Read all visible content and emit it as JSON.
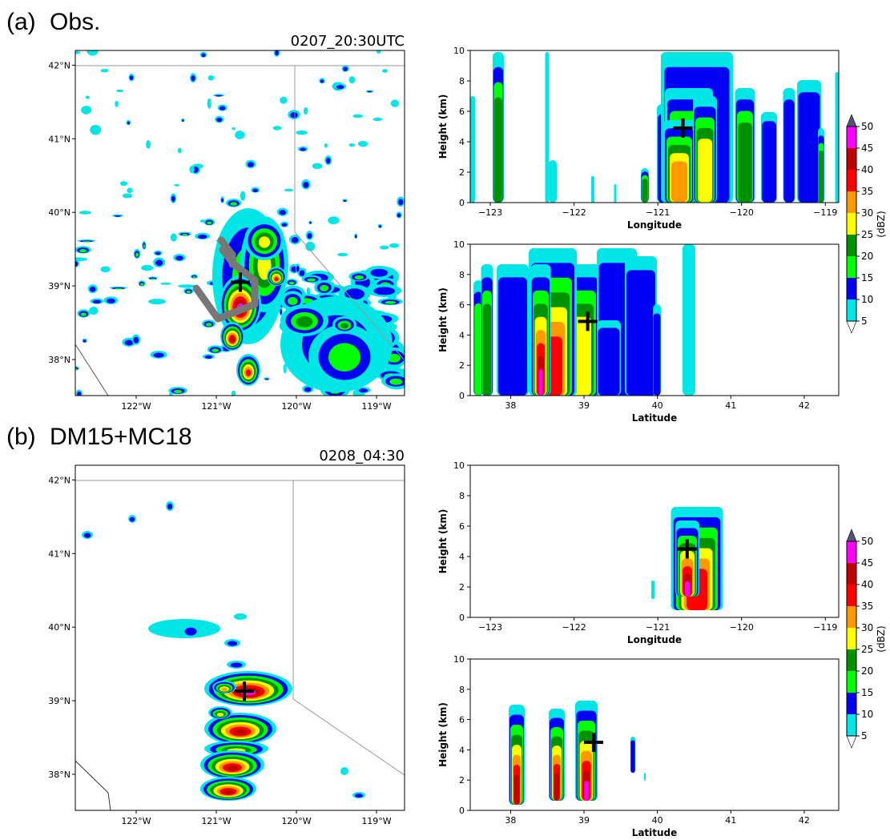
{
  "panels": [
    {
      "label": "(a)",
      "title": "Obs.",
      "time": "0207_20:30UTC",
      "marker": {
        "lon": -120.7,
        "lat": 39.05,
        "height": 4.9
      },
      "map": {
        "xlim": [
          -122.76,
          -118.65
        ],
        "ylim": [
          37.51,
          42.2
        ],
        "xticks": [
          {
            "value": -122,
            "label": "122°W"
          },
          {
            "value": -121,
            "label": "121°W"
          },
          {
            "value": -120,
            "label": "120°W"
          },
          {
            "value": -119,
            "label": "119°W"
          }
        ],
        "yticks": [
          {
            "value": 38,
            "label": "38°N"
          },
          {
            "value": 39,
            "label": "39°N"
          },
          {
            "value": 40,
            "label": "40°N"
          },
          {
            "value": 41,
            "label": "41°N"
          },
          {
            "value": 42,
            "label": "42°N"
          }
        ]
      },
      "lon_section": {
        "xlabel": "Longitude",
        "ylabel": "Height (km)",
        "xlim": [
          -123.24,
          -118.84
        ],
        "ylim": [
          0,
          10
        ],
        "xticks": [
          {
            "value": -123,
            "label": "−123"
          },
          {
            "value": -122,
            "label": "−122"
          },
          {
            "value": -121,
            "label": "−121"
          },
          {
            "value": -120,
            "label": "−120"
          },
          {
            "value": -119,
            "label": "−119"
          }
        ],
        "yticks": [
          0,
          2,
          4,
          6,
          8,
          10
        ]
      },
      "lat_section": {
        "xlabel": "Latitude",
        "ylabel": "Height (km)",
        "xlim": [
          37.45,
          42.47
        ],
        "ylim": [
          0,
          10
        ],
        "xticks": [
          38,
          39,
          40,
          41,
          42
        ],
        "yticks": [
          0,
          2,
          4,
          6,
          8,
          10
        ]
      },
      "colorbar": {
        "label": "(dBZ)",
        "ticks": [
          5,
          10,
          15,
          20,
          25,
          30,
          35,
          40,
          45,
          50
        ],
        "colors": [
          "#00e5e5",
          "#0000f5",
          "#00ff00",
          "#009100",
          "#ffff00",
          "#ff9900",
          "#ff0000",
          "#c00000",
          "#ff00ff"
        ],
        "under_color": "#ffffff",
        "over_color": "#54547a"
      }
    },
    {
      "label": "(b)",
      "title": "DM15+MC18",
      "time": "0208_04:30",
      "marker": {
        "lon": -120.65,
        "lat": 39.13,
        "height": 4.5
      },
      "map": {
        "xlim": [
          -122.76,
          -118.65
        ],
        "ylim": [
          37.51,
          42.2
        ],
        "xticks": [
          {
            "value": -122,
            "label": "122°W"
          },
          {
            "value": -121,
            "label": "121°W"
          },
          {
            "value": -120,
            "label": "120°W"
          },
          {
            "value": -119,
            "label": "119°W"
          }
        ],
        "yticks": [
          {
            "value": 38,
            "label": "38°N"
          },
          {
            "value": 39,
            "label": "39°N"
          },
          {
            "value": 40,
            "label": "40°N"
          },
          {
            "value": 41,
            "label": "41°N"
          },
          {
            "value": 42,
            "label": "42°N"
          }
        ]
      },
      "lon_section": {
        "xlabel": "Longitude",
        "ylabel": "Height (km)",
        "xlim": [
          -123.24,
          -118.84
        ],
        "ylim": [
          0,
          10
        ],
        "xticks": [
          {
            "value": -123,
            "label": "−123"
          },
          {
            "value": -122,
            "label": "−122"
          },
          {
            "value": -121,
            "label": "−121"
          },
          {
            "value": -120,
            "label": "−120"
          },
          {
            "value": -119,
            "label": "−119"
          }
        ],
        "yticks": [
          0,
          2,
          4,
          6,
          8,
          10
        ]
      },
      "lat_section": {
        "xlabel": "Latitude",
        "ylabel": "Height (km)",
        "xlim": [
          37.45,
          42.47
        ],
        "ylim": [
          0,
          10
        ],
        "xticks": [
          38,
          39,
          40,
          41,
          42
        ],
        "yticks": [
          0,
          2,
          4,
          6,
          8,
          10
        ]
      },
      "colorbar": {
        "label": "(dBZ)",
        "ticks": [
          5,
          10,
          15,
          20,
          25,
          30,
          35,
          40,
          45,
          50
        ],
        "colors": [
          "#00e5e5",
          "#0000f5",
          "#00ff00",
          "#009100",
          "#ffff00",
          "#ff9900",
          "#ff0000",
          "#c00000",
          "#ff00ff"
        ],
        "under_color": "#ffffff",
        "over_color": "#54547a"
      }
    }
  ]
}
